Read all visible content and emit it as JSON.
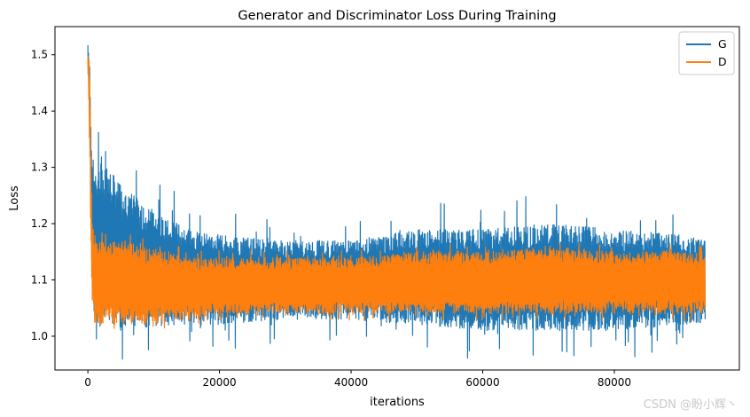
{
  "chart_data": {
    "type": "line",
    "title": "Generator and Discriminator Loss During Training",
    "xlabel": "iterations",
    "ylabel": "Loss",
    "xlim": [
      -5000,
      99000
    ],
    "ylim": [
      0.94,
      1.55
    ],
    "xticks": [
      0,
      20000,
      40000,
      60000,
      80000
    ],
    "xtick_labels": [
      "0",
      "20000",
      "40000",
      "60000",
      "80000"
    ],
    "yticks": [
      1.0,
      1.1,
      1.2,
      1.3,
      1.4,
      1.5
    ],
    "ytick_labels": [
      "1.0",
      "1.1",
      "1.2",
      "1.3",
      "1.4",
      "1.5"
    ],
    "grid": false,
    "legend_position": "top-right",
    "series": [
      {
        "name": "G",
        "color": "#1f77b4",
        "x": [
          0,
          300,
          600,
          1000,
          2000,
          3000,
          5000,
          8000,
          12000,
          16000,
          20000,
          30000,
          40000,
          50000,
          60000,
          70000,
          80000,
          90000,
          93800
        ],
        "upper": [
          1.52,
          1.48,
          1.33,
          1.3,
          1.32,
          1.3,
          1.27,
          1.24,
          1.21,
          1.19,
          1.18,
          1.17,
          1.17,
          1.19,
          1.19,
          1.2,
          1.19,
          1.18,
          1.17
        ],
        "lower": [
          1.48,
          1.35,
          1.12,
          1.02,
          1.01,
          1.02,
          1.01,
          1.01,
          1.02,
          1.02,
          1.02,
          1.03,
          1.03,
          1.02,
          1.01,
          1.01,
          1.01,
          1.02,
          1.02
        ]
      },
      {
        "name": "D",
        "color": "#ff7f0e",
        "x": [
          0,
          300,
          600,
          1000,
          2000,
          3000,
          5000,
          8000,
          12000,
          16000,
          20000,
          30000,
          40000,
          50000,
          60000,
          70000,
          80000,
          90000,
          93800
        ],
        "upper": [
          1.5,
          1.47,
          1.22,
          1.17,
          1.17,
          1.17,
          1.17,
          1.16,
          1.15,
          1.14,
          1.14,
          1.14,
          1.14,
          1.15,
          1.15,
          1.16,
          1.15,
          1.15,
          1.15
        ],
        "lower": [
          1.49,
          1.3,
          1.07,
          1.03,
          1.02,
          1.02,
          1.02,
          1.02,
          1.03,
          1.03,
          1.04,
          1.04,
          1.04,
          1.04,
          1.04,
          1.04,
          1.04,
          1.04,
          1.04
        ]
      }
    ]
  },
  "watermark": "CSDN @盼小辉丶"
}
